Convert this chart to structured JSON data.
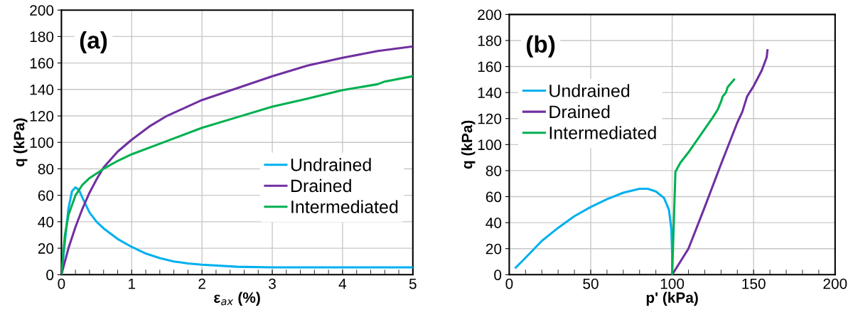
{
  "chart_data": [
    {
      "type": "line",
      "xlabel": "ε$_{ax}$ (%)",
      "ylabel": "q (kPa)",
      "annotations": [
        "(a)"
      ],
      "xlim": [
        0,
        5
      ],
      "xticks": [
        0,
        1,
        2,
        3,
        4,
        5
      ],
      "ylim": [
        0,
        200
      ],
      "yticks": [
        0,
        20,
        40,
        60,
        80,
        100,
        120,
        140,
        160,
        180,
        200
      ],
      "grid": true,
      "legend": "right",
      "marker": "none",
      "line_style": "solid",
      "series": [
        {
          "name": "Undrained",
          "color": "#00b0f0",
          "x": [
            0,
            0.05,
            0.1,
            0.15,
            0.2,
            0.25,
            0.3,
            0.4,
            0.5,
            0.6,
            0.8,
            1,
            1.2,
            1.4,
            1.6,
            1.8,
            2,
            2.5,
            3,
            4,
            5
          ],
          "values": [
            0,
            25,
            50,
            63,
            66,
            64,
            58,
            47,
            40,
            35,
            27,
            21,
            16,
            12.5,
            10,
            8.5,
            7.5,
            6,
            5.5,
            5.5,
            5.5
          ]
        },
        {
          "name": "Drained",
          "color": "#7030a0",
          "x": [
            0,
            0.1,
            0.2,
            0.3,
            0.4,
            0.5,
            0.6,
            0.8,
            1,
            1.25,
            1.5,
            2,
            2.5,
            3,
            3.5,
            4,
            4.5,
            5
          ],
          "values": [
            0,
            20,
            36,
            50,
            62,
            72,
            81,
            93,
            102,
            112,
            120,
            132,
            141,
            150,
            158,
            164,
            169,
            172.5
          ]
        },
        {
          "name": "Intermediated",
          "color": "#00b050",
          "x": [
            0,
            0.05,
            0.1,
            0.2,
            0.3,
            0.4,
            0.6,
            0.8,
            1,
            1.5,
            2,
            2.5,
            3,
            3.5,
            3.8,
            4,
            4.5,
            4.6,
            5
          ],
          "values": [
            0,
            30,
            45,
            60,
            68,
            73,
            80,
            86,
            91,
            101,
            111,
            119,
            127,
            133,
            137,
            139.5,
            144,
            146,
            150
          ]
        }
      ]
    },
    {
      "type": "line",
      "xlabel": "p' (kPa)",
      "ylabel": "q (kPa)",
      "annotations": [
        "(b)"
      ],
      "xlim": [
        0,
        200
      ],
      "xticks": [
        0,
        50,
        100,
        150,
        200
      ],
      "ylim": [
        0,
        200
      ],
      "yticks": [
        0,
        20,
        40,
        60,
        80,
        100,
        120,
        140,
        160,
        180,
        200
      ],
      "grid": true,
      "legend": "left",
      "marker": "none",
      "line_style": "solid",
      "series": [
        {
          "name": "Undrained",
          "color": "#00b0f0",
          "x": [
            4,
            10,
            20,
            30,
            40,
            50,
            60,
            70,
            80,
            85,
            90,
            95,
            98,
            99.5,
            100,
            100
          ],
          "values": [
            5.5,
            13,
            26,
            36,
            45,
            52,
            58,
            63,
            66,
            66,
            64,
            59,
            50,
            35,
            15,
            0
          ]
        },
        {
          "name": "Drained",
          "color": "#7030a0",
          "x": [
            100,
            110,
            120,
            130,
            140,
            143,
            146,
            150,
            155,
            158,
            158.5
          ],
          "values": [
            0,
            20,
            52,
            85,
            117,
            125,
            137,
            145,
            157,
            167,
            172.5
          ]
        },
        {
          "name": "Intermediated",
          "color": "#00b050",
          "x": [
            100,
            101,
            102,
            105,
            110,
            115,
            120,
            125,
            128,
            130,
            131,
            133,
            134,
            136,
            138
          ],
          "values": [
            0,
            40,
            79,
            86,
            94,
            103,
            112,
            121,
            127,
            133,
            137,
            140,
            144,
            147,
            150
          ]
        }
      ]
    }
  ]
}
